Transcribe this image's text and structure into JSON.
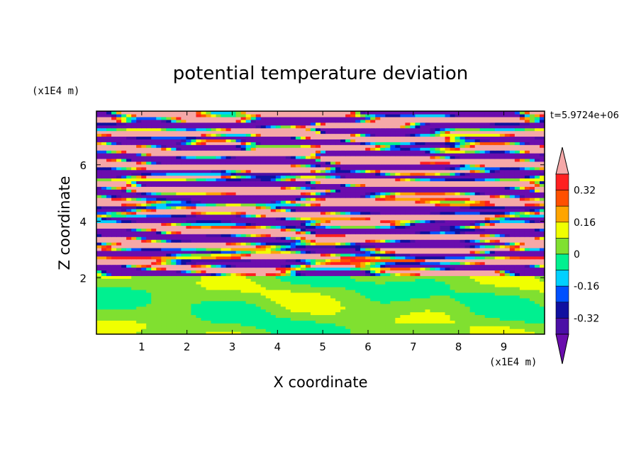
{
  "chart_data": {
    "type": "heatmap",
    "title": "potential temperature deviation",
    "xlabel": "X coordinate",
    "ylabel": "Z coordinate",
    "x_unit": "(x1E4 m)",
    "y_unit": "(x1E4 m)",
    "time_label": "t=5.9724e+06",
    "xlim": [
      0,
      9.9
    ],
    "ylim": [
      0,
      7.9
    ],
    "x_ticks": [
      "1",
      "2",
      "3",
      "4",
      "5",
      "6",
      "7",
      "8",
      "9"
    ],
    "x_tick_values": [
      1,
      2,
      3,
      4,
      5,
      6,
      7,
      8,
      9
    ],
    "y_ticks": [
      "2",
      "4",
      "6"
    ],
    "y_tick_values": [
      2,
      4,
      6
    ],
    "colorbar": {
      "levels": [
        -0.48,
        -0.4,
        -0.32,
        -0.24,
        -0.16,
        -0.08,
        0,
        0.08,
        0.16,
        0.24,
        0.32,
        0.4,
        0.48
      ],
      "colors": [
        "#6a0dad",
        "#4b0fa6",
        "#1010a0",
        "#0050ff",
        "#00d0ff",
        "#00f090",
        "#80e030",
        "#f0ff00",
        "#ffa500",
        "#ff5000",
        "#ff2020",
        "#f5a8a8"
      ],
      "tick_labels": [
        "0.32",
        "0.16",
        "0",
        "-0.16",
        "-0.32"
      ],
      "tick_values": [
        0.32,
        0.16,
        0,
        -0.16,
        -0.32
      ]
    }
  }
}
